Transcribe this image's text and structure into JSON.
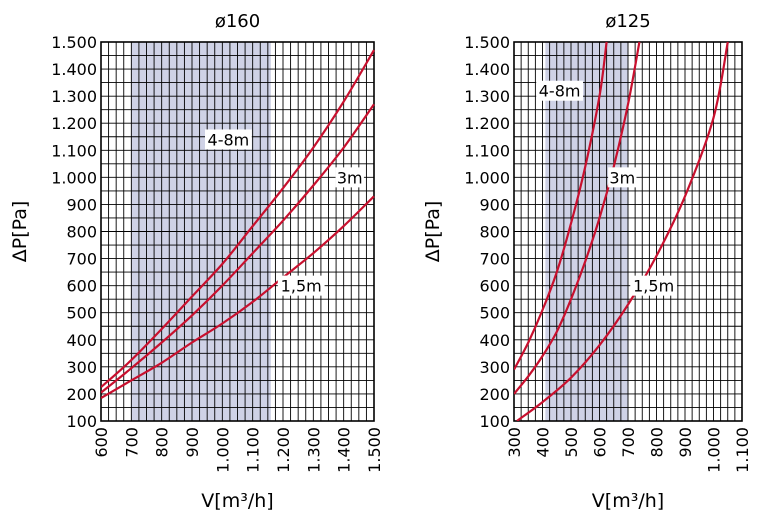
{
  "chart_data": [
    {
      "type": "line",
      "title": "ø160",
      "xlabel": "V[m³/h]",
      "ylabel": "ΔP[Pa]",
      "xlim": [
        600,
        1500
      ],
      "ylim": [
        100,
        1500
      ],
      "x_ticks": [
        600,
        700,
        800,
        900,
        1000,
        1100,
        1200,
        1300,
        1400,
        1500
      ],
      "x_tick_labels": [
        "600",
        "700",
        "800",
        "900",
        "1.000",
        "1.100",
        "1.200",
        "1.300",
        "1.400",
        "1.500"
      ],
      "y_ticks": [
        100,
        200,
        300,
        400,
        500,
        600,
        700,
        800,
        900,
        1000,
        1100,
        1200,
        1300,
        1400,
        1500
      ],
      "y_tick_labels": [
        "100",
        "200",
        "300",
        "400",
        "500",
        "600",
        "700",
        "800",
        "900",
        "1.000",
        "1.100",
        "1.200",
        "1.300",
        "1.400",
        "1.500"
      ],
      "grid": true,
      "shaded_x_range": [
        700,
        1160
      ],
      "shade_color": "#cfd2e6",
      "line_color": "#c8102e",
      "series": [
        {
          "name": "4-8m",
          "x": [
            600,
            700,
            800,
            900,
            1000,
            1100,
            1200,
            1300,
            1400,
            1500
          ],
          "y": [
            225,
            325,
            440,
            560,
            680,
            820,
            960,
            1110,
            1280,
            1470
          ]
        },
        {
          "name": "3m",
          "x": [
            600,
            700,
            800,
            900,
            1000,
            1100,
            1200,
            1300,
            1400,
            1500
          ],
          "y": [
            205,
            295,
            390,
            490,
            600,
            720,
            840,
            970,
            1110,
            1270
          ]
        },
        {
          "name": "1,5m",
          "x": [
            600,
            700,
            800,
            900,
            1000,
            1100,
            1200,
            1300,
            1400,
            1500
          ],
          "y": [
            185,
            250,
            315,
            390,
            460,
            540,
            630,
            720,
            820,
            930
          ]
        }
      ],
      "annotations": [
        {
          "text": "4-8m",
          "x": 1020,
          "y": 1140
        },
        {
          "text": "3m",
          "x": 1420,
          "y": 1000
        },
        {
          "text": "1,5m",
          "x": 1260,
          "y": 600
        }
      ]
    },
    {
      "type": "line",
      "title": "ø125",
      "xlabel": "V[m³/h]",
      "ylabel": "ΔP[Pa]",
      "xlim": [
        300,
        1100
      ],
      "ylim": [
        100,
        1500
      ],
      "x_ticks": [
        300,
        400,
        500,
        600,
        700,
        800,
        900,
        1000,
        1100
      ],
      "x_tick_labels": [
        "300",
        "400",
        "500",
        "600",
        "700",
        "800",
        "900",
        "1.000",
        "1.100"
      ],
      "y_ticks": [
        100,
        200,
        300,
        400,
        500,
        600,
        700,
        800,
        900,
        1000,
        1100,
        1200,
        1300,
        1400,
        1500
      ],
      "y_tick_labels": [
        "100",
        "200",
        "300",
        "400",
        "500",
        "600",
        "700",
        "800",
        "900",
        "1.000",
        "1.100",
        "1.200",
        "1.300",
        "1.400",
        "1.500"
      ],
      "grid": true,
      "shaded_x_range": [
        410,
        700
      ],
      "shade_color": "#cfd2e6",
      "line_color": "#c8102e",
      "series": [
        {
          "name": "4-8m",
          "x": [
            300,
            350,
            400,
            450,
            500,
            550,
            600,
            625
          ],
          "y": [
            290,
            390,
            510,
            650,
            830,
            1040,
            1300,
            1500
          ]
        },
        {
          "name": "3m",
          "x": [
            300,
            350,
            400,
            450,
            500,
            550,
            600,
            650,
            700,
            740
          ],
          "y": [
            200,
            265,
            340,
            430,
            550,
            690,
            850,
            1040,
            1270,
            1500
          ]
        },
        {
          "name": "1,5m",
          "x": [
            310,
            400,
            500,
            600,
            700,
            800,
            900,
            1000,
            1050
          ],
          "y": [
            100,
            170,
            260,
            380,
            530,
            710,
            930,
            1220,
            1500
          ]
        }
      ],
      "annotations": [
        {
          "text": "4-8m",
          "x": 460,
          "y": 1320
        },
        {
          "text": "3m",
          "x": 680,
          "y": 1000
        },
        {
          "text": "1,5m",
          "x": 790,
          "y": 600
        }
      ]
    }
  ]
}
